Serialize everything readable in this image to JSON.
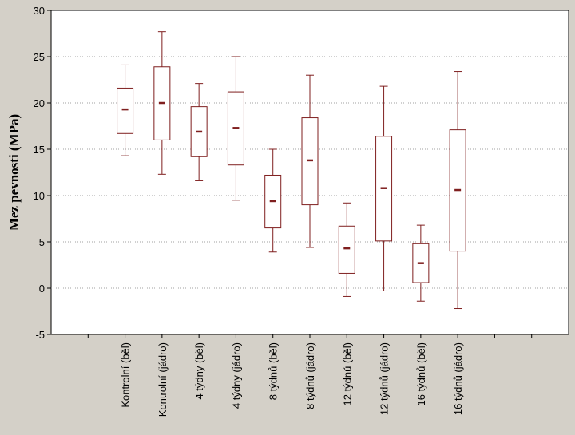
{
  "chart_data": {
    "type": "box",
    "title": "",
    "xlabel": "",
    "ylabel": "Mez pevnosti (MPa)",
    "ylim": [
      -5,
      30
    ],
    "yticks": [
      -5,
      0,
      5,
      10,
      15,
      20,
      25,
      30
    ],
    "grid": "horizontal dotted",
    "categories": [
      "Kontrolní (běl)",
      "Kontrolní  (jádro)",
      "4 týdny (běl)",
      "4 týdny (jádro)",
      "8 týdnů (běl)",
      "8 týdnů (jádro)",
      "12 týdnů (běl)",
      "12 týdnů (jádro)",
      "16 týdnů (běl)",
      "16 týdnů (jádro)"
    ],
    "boxes": [
      {
        "whisker_low": 14.3,
        "q1": 16.7,
        "median": 19.3,
        "q3": 21.6,
        "whisker_high": 24.1
      },
      {
        "whisker_low": 12.3,
        "q1": 16.0,
        "median": 20.0,
        "q3": 23.9,
        "whisker_high": 27.7
      },
      {
        "whisker_low": 11.6,
        "q1": 14.2,
        "median": 16.9,
        "q3": 19.6,
        "whisker_high": 22.1
      },
      {
        "whisker_low": 9.5,
        "q1": 13.3,
        "median": 17.3,
        "q3": 21.2,
        "whisker_high": 25.0
      },
      {
        "whisker_low": 3.9,
        "q1": 6.5,
        "median": 9.4,
        "q3": 12.2,
        "whisker_high": 15.0
      },
      {
        "whisker_low": 4.4,
        "q1": 9.0,
        "median": 13.8,
        "q3": 18.4,
        "whisker_high": 23.0
      },
      {
        "whisker_low": -0.9,
        "q1": 1.6,
        "median": 4.3,
        "q3": 6.7,
        "whisker_high": 9.2
      },
      {
        "whisker_low": -0.3,
        "q1": 5.1,
        "median": 10.8,
        "q3": 16.4,
        "whisker_high": 21.8
      },
      {
        "whisker_low": -1.4,
        "q1": 0.6,
        "median": 2.7,
        "q3": 4.8,
        "whisker_high": 6.8
      },
      {
        "whisker_low": -2.2,
        "q1": 4.0,
        "median": 10.6,
        "q3": 17.1,
        "whisker_high": 23.4
      }
    ],
    "colors": {
      "background": "#d4d0c8",
      "plot_background": "#ffffff",
      "box_stroke": "#7f1f1f",
      "median": "#7f1f1f",
      "grid": "#a0a0a0"
    }
  }
}
